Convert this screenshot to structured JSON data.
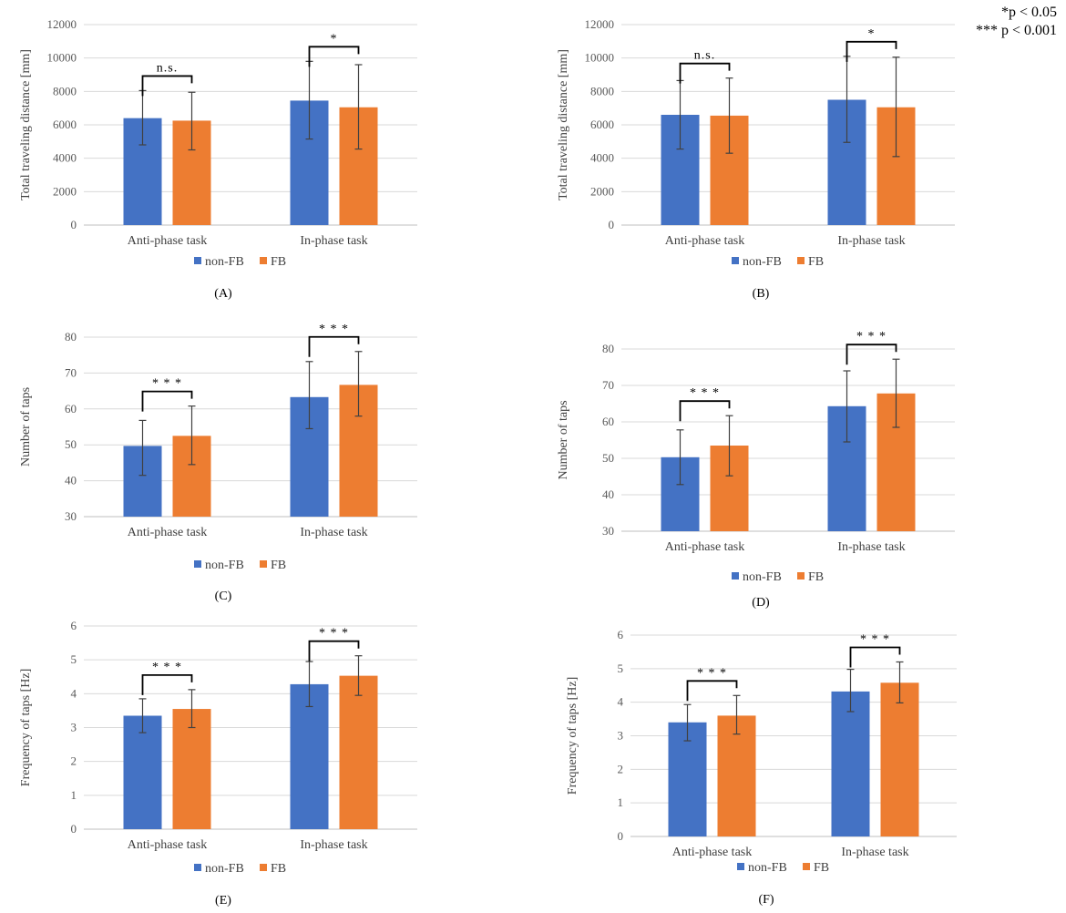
{
  "notes": [
    "*p < 0.05",
    "*** p < 0.001"
  ],
  "colors": {
    "non_fb": "#4472c4",
    "fb": "#ed7d31"
  },
  "chart_data": [
    {
      "id": "A",
      "label": "(A)",
      "type": "bar",
      "ylabel": "Total traveling distance [mm]",
      "ylim": [
        0,
        12000
      ],
      "yticks": [
        0,
        2000,
        4000,
        6000,
        8000,
        10000,
        12000
      ],
      "categories": [
        "Anti-phase task",
        "In-phase task"
      ],
      "series": [
        {
          "name": "non-FB",
          "values": [
            6400,
            7450
          ],
          "err_low": [
            4800,
            5150
          ],
          "err_high": [
            8050,
            9800
          ]
        },
        {
          "name": "FB",
          "values": [
            6250,
            7050
          ],
          "err_low": [
            4500,
            4550
          ],
          "err_high": [
            7950,
            9600
          ]
        }
      ],
      "significance": [
        "n.s.",
        "*"
      ]
    },
    {
      "id": "B",
      "label": "(B)",
      "type": "bar",
      "ylabel": "Total traveling distance [mm]",
      "ylim": [
        0,
        12000
      ],
      "yticks": [
        0,
        2000,
        4000,
        6000,
        8000,
        10000,
        12000
      ],
      "categories": [
        "Anti-phase task",
        "In-phase task"
      ],
      "series": [
        {
          "name": "non-FB",
          "values": [
            6600,
            7500
          ],
          "err_low": [
            4550,
            4950
          ],
          "err_high": [
            8650,
            10100
          ]
        },
        {
          "name": "FB",
          "values": [
            6550,
            7050
          ],
          "err_low": [
            4300,
            4100
          ],
          "err_high": [
            8800,
            10050
          ]
        }
      ],
      "significance": [
        "n.s.",
        "*"
      ]
    },
    {
      "id": "C",
      "label": "(C)",
      "type": "bar",
      "ylabel": "Number of taps",
      "ylim": [
        30,
        80
      ],
      "yticks": [
        30,
        40,
        50,
        60,
        70,
        80
      ],
      "categories": [
        "Anti-phase task",
        "In-phase task"
      ],
      "series": [
        {
          "name": "non-FB",
          "values": [
            49.7,
            63.3
          ],
          "err_low": [
            41.5,
            54.5
          ],
          "err_high": [
            56.8,
            73.2
          ]
        },
        {
          "name": "FB",
          "values": [
            52.5,
            66.7
          ],
          "err_low": [
            44.5,
            58.0
          ],
          "err_high": [
            60.8,
            76.0
          ]
        }
      ],
      "significance": [
        "* * *",
        "* * *"
      ]
    },
    {
      "id": "D",
      "label": "(D)",
      "type": "bar",
      "ylabel": "Number of taps",
      "ylim": [
        30,
        80
      ],
      "yticks": [
        30,
        40,
        50,
        60,
        70,
        80
      ],
      "categories": [
        "Anti-phase task",
        "In-phase task"
      ],
      "series": [
        {
          "name": "non-FB",
          "values": [
            50.3,
            64.3
          ],
          "err_low": [
            42.8,
            54.5
          ],
          "err_high": [
            57.8,
            74.0
          ]
        },
        {
          "name": "FB",
          "values": [
            53.5,
            67.8
          ],
          "err_low": [
            45.2,
            58.5
          ],
          "err_high": [
            61.7,
            77.2
          ]
        }
      ],
      "significance": [
        "* * *",
        "* * *"
      ]
    },
    {
      "id": "E",
      "label": "(E)",
      "type": "bar",
      "ylabel": "Frequency of taps [Hz]",
      "ylim": [
        0,
        6
      ],
      "yticks": [
        0,
        1,
        2,
        3,
        4,
        5,
        6
      ],
      "categories": [
        "Anti-phase task",
        "In-phase task"
      ],
      "series": [
        {
          "name": "non-FB",
          "values": [
            3.35,
            4.28
          ],
          "err_low": [
            2.85,
            3.62
          ],
          "err_high": [
            3.85,
            4.95
          ]
        },
        {
          "name": "FB",
          "values": [
            3.55,
            4.53
          ],
          "err_low": [
            3.0,
            3.95
          ],
          "err_high": [
            4.12,
            5.12
          ]
        }
      ],
      "significance": [
        "* * *",
        "* * *"
      ]
    },
    {
      "id": "F",
      "label": "(F)",
      "type": "bar",
      "ylabel": "Frequency of taps [Hz]",
      "ylim": [
        0,
        6
      ],
      "yticks": [
        0,
        1,
        2,
        3,
        4,
        5,
        6
      ],
      "categories": [
        "Anti-phase task",
        "In-phase task"
      ],
      "series": [
        {
          "name": "non-FB",
          "values": [
            3.4,
            4.32
          ],
          "err_low": [
            2.85,
            3.72
          ],
          "err_high": [
            3.93,
            4.98
          ]
        },
        {
          "name": "FB",
          "values": [
            3.6,
            4.58
          ],
          "err_low": [
            3.05,
            3.98
          ],
          "err_high": [
            4.2,
            5.2
          ]
        }
      ],
      "significance": [
        "* * *",
        "* * *"
      ]
    }
  ]
}
